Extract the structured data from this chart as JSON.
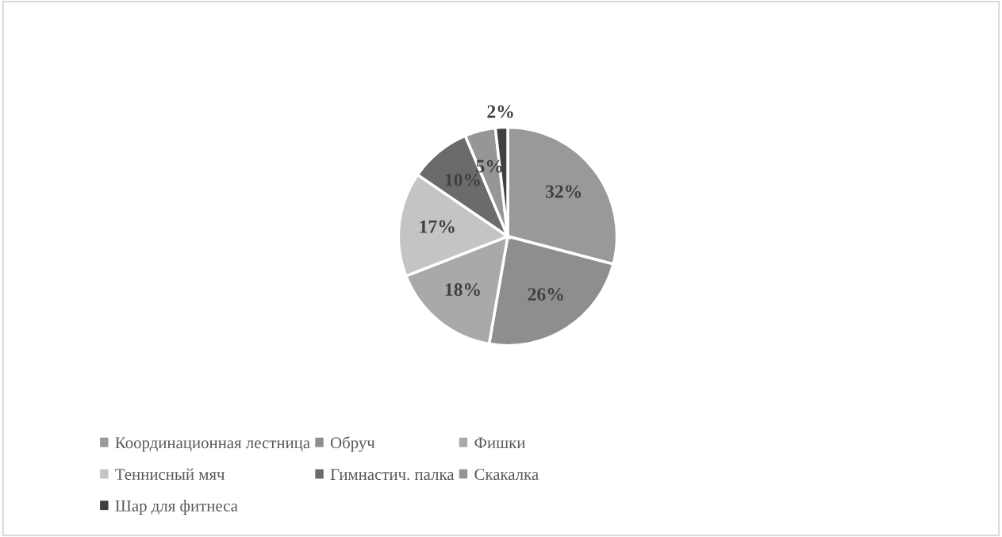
{
  "chart_data": {
    "type": "pie",
    "categories": [
      "Координационная лестница",
      "Обруч",
      "Фишки",
      "Теннисный мяч",
      "Гимнастич. палка",
      "Скакалка",
      "Шар для фитнеса"
    ],
    "values": [
      32,
      26,
      18,
      17,
      10,
      5,
      2
    ],
    "colors": [
      "#999999",
      "#8e8e8e",
      "#a9a9a9",
      "#c4c4c4",
      "#6b6b6b",
      "#969696",
      "#404040"
    ],
    "value_labels": [
      "32%",
      "26%",
      "18%",
      "17%",
      "10%",
      "5%",
      "2%"
    ],
    "legend": "bottom"
  }
}
